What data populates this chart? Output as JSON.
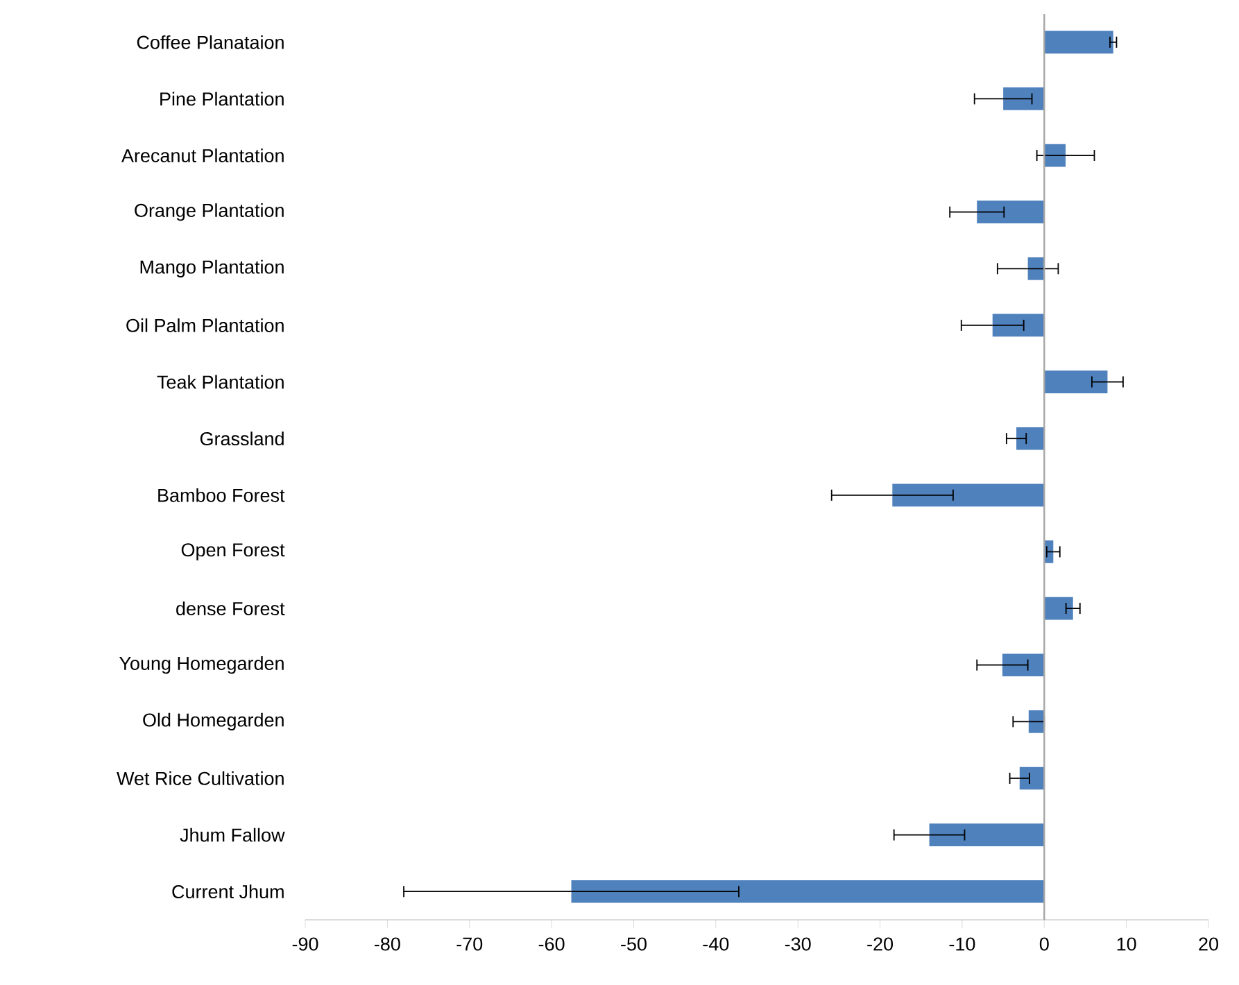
{
  "chart_data": {
    "type": "bar",
    "orientation": "horizontal",
    "categories": [
      "Coffee Planataion",
      "Pine Plantation",
      "Arecanut Plantation",
      "Orange Plantation",
      "Mango Plantation",
      "Oil Palm Plantation",
      "Teak Plantation",
      "Grassland",
      "Bamboo Forest",
      "Open Forest",
      "dense Forest",
      "Young Homegarden",
      "Old Homegarden",
      "Wet Rice Cultivation",
      "Jhum Fallow",
      "Current Jhum"
    ],
    "values": [
      8.4,
      -5.0,
      2.6,
      -8.2,
      -2.0,
      -6.3,
      7.7,
      -3.4,
      -18.5,
      1.1,
      3.5,
      -5.1,
      -1.9,
      -3.0,
      -14.0,
      -57.6
    ],
    "errors": [
      0.4,
      3.5,
      3.5,
      3.3,
      3.7,
      3.8,
      1.9,
      1.2,
      7.4,
      0.8,
      0.85,
      3.1,
      1.9,
      1.2,
      4.3,
      20.4
    ],
    "color": "#4f81bd",
    "xlim": [
      -90,
      20
    ],
    "xticks": [
      -90,
      -80,
      -70,
      -60,
      -50,
      -40,
      -30,
      -20,
      -10,
      0,
      10,
      20
    ]
  }
}
